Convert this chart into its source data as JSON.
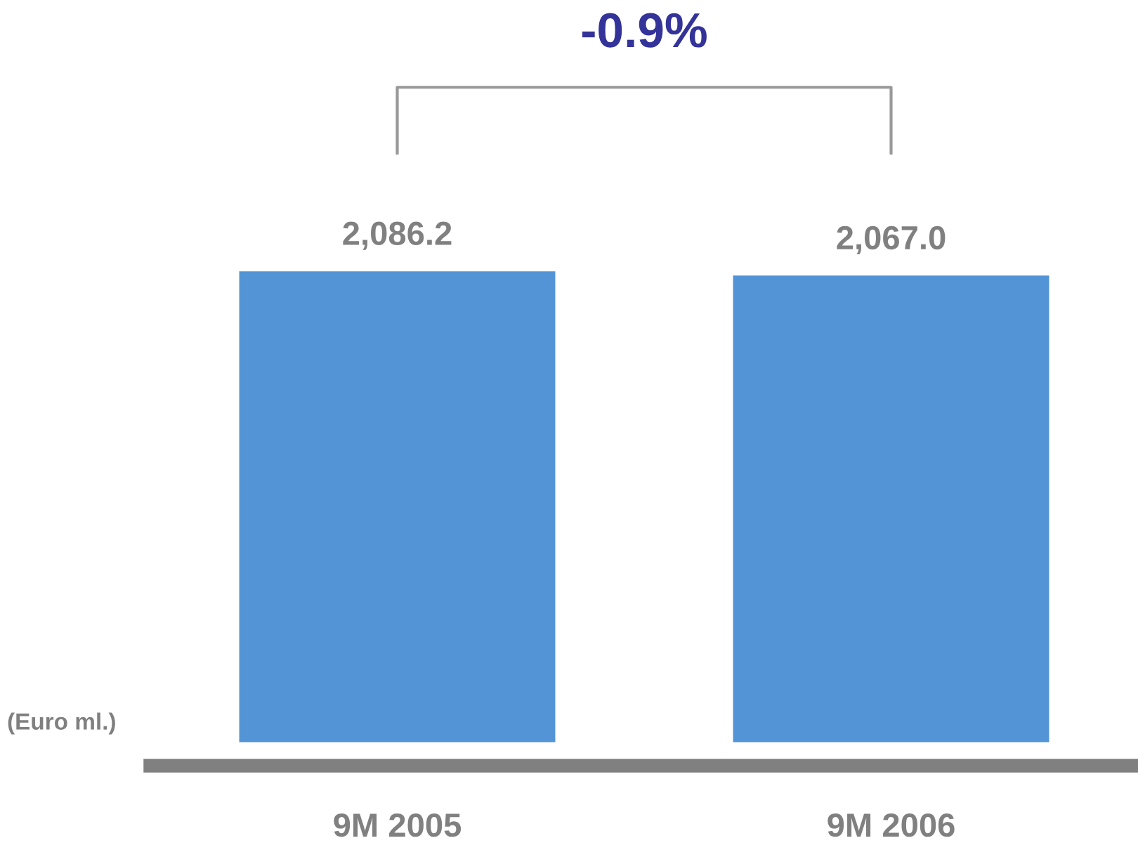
{
  "chart_data": {
    "type": "bar",
    "categories": [
      "9M 2005",
      "9M 2006"
    ],
    "values": [
      2086.2,
      2067.0
    ],
    "value_labels": [
      "2,086.2",
      "2,067.0"
    ],
    "color": "#5294d6",
    "annotations": [
      "-0.9%",
      "(Euro ml.)"
    ],
    "grid": false,
    "legend": false
  }
}
